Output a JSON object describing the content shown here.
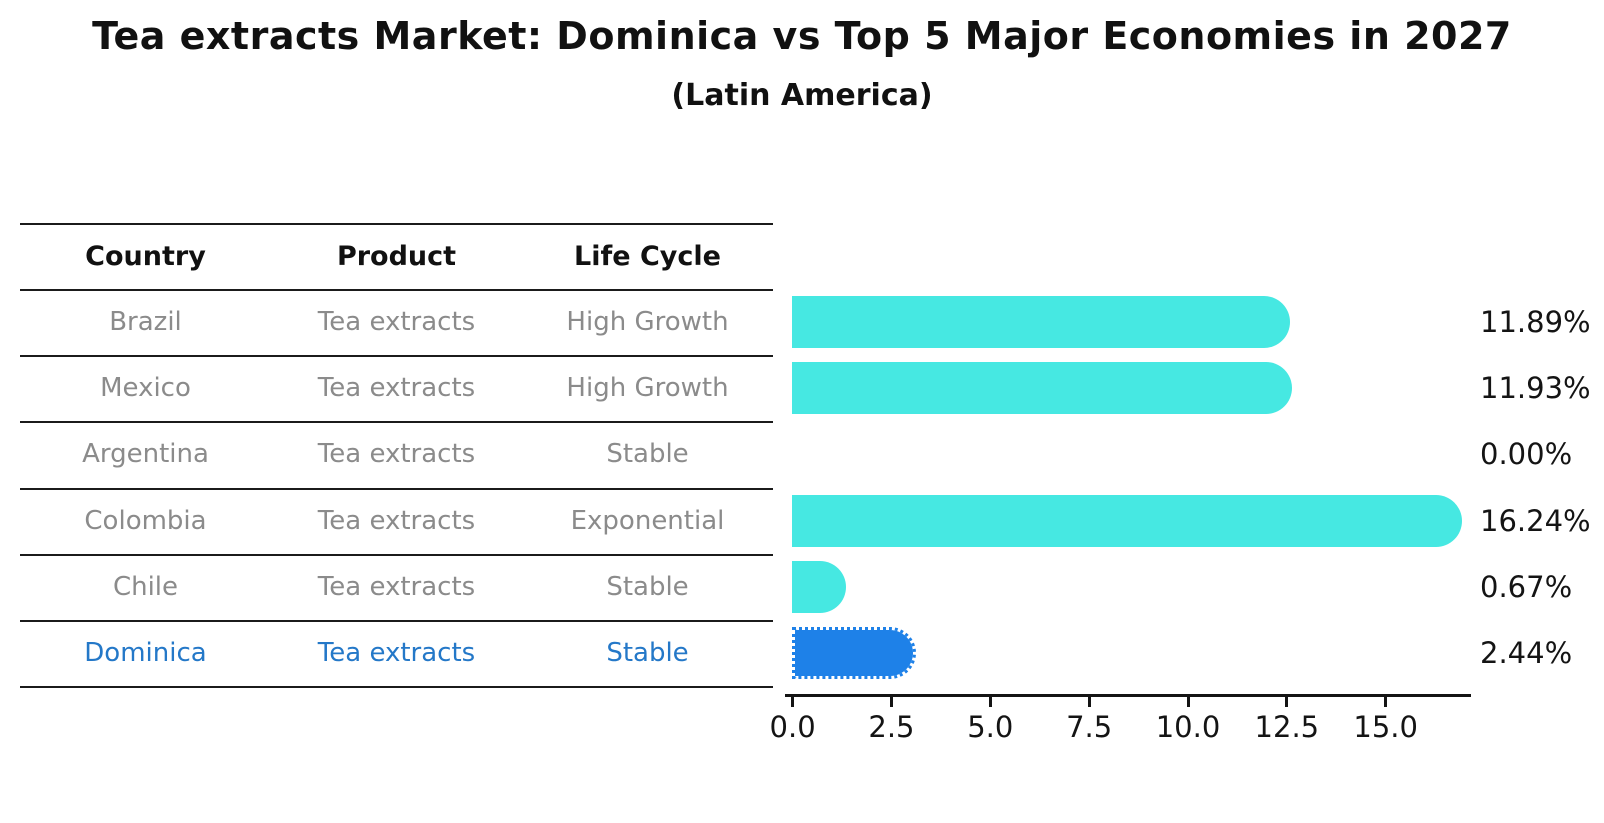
{
  "header": {
    "title": "Tea extracts Market: Dominica vs Top 5 Major Economies in 2027",
    "subtitle": "(Latin America)"
  },
  "table": {
    "columns": [
      "Country",
      "Product",
      "Life Cycle"
    ],
    "rows": [
      {
        "country": "Brazil",
        "product": "Tea extracts",
        "life_cycle": "High Growth",
        "highlighted": false
      },
      {
        "country": "Mexico",
        "product": "Tea extracts",
        "life_cycle": "High Growth",
        "highlighted": false
      },
      {
        "country": "Argentina",
        "product": "Tea extracts",
        "life_cycle": "Stable",
        "highlighted": false
      },
      {
        "country": "Colombia",
        "product": "Tea extracts",
        "life_cycle": "Exponential",
        "highlighted": false
      },
      {
        "country": "Chile",
        "product": "Tea extracts",
        "life_cycle": "Stable",
        "highlighted": false
      },
      {
        "country": "Dominica",
        "product": "Tea extracts",
        "life_cycle": "Stable",
        "highlighted": true
      }
    ]
  },
  "chart_data": {
    "type": "bar",
    "orientation": "horizontal",
    "title": "Tea extracts Market: Dominica vs Top 5 Major Economies in 2027",
    "subtitle": "(Latin America)",
    "categories": [
      "Brazil",
      "Mexico",
      "Argentina",
      "Colombia",
      "Chile",
      "Dominica"
    ],
    "values": [
      11.89,
      11.93,
      0.0,
      16.24,
      0.67,
      2.44
    ],
    "value_labels": [
      "11.89%",
      "11.93%",
      "0.00%",
      "16.24%",
      "0.67%",
      "2.44%"
    ],
    "x_ticks": [
      "0.0",
      "2.5",
      "5.0",
      "7.5",
      "10.0",
      "12.5",
      "15.0"
    ],
    "x_tick_values": [
      0,
      2.5,
      5,
      7.5,
      10,
      12.5,
      15
    ],
    "xlim": [
      0,
      17.15
    ],
    "grid": false,
    "legend": "none",
    "bar_color": "#46e8e2",
    "highlight_bar_color": "#1e81e8",
    "highlight_index": 5,
    "highlight_text_color": "#2478c8",
    "axis_color": "#141414",
    "row_text_color": "#8b8b8b"
  }
}
